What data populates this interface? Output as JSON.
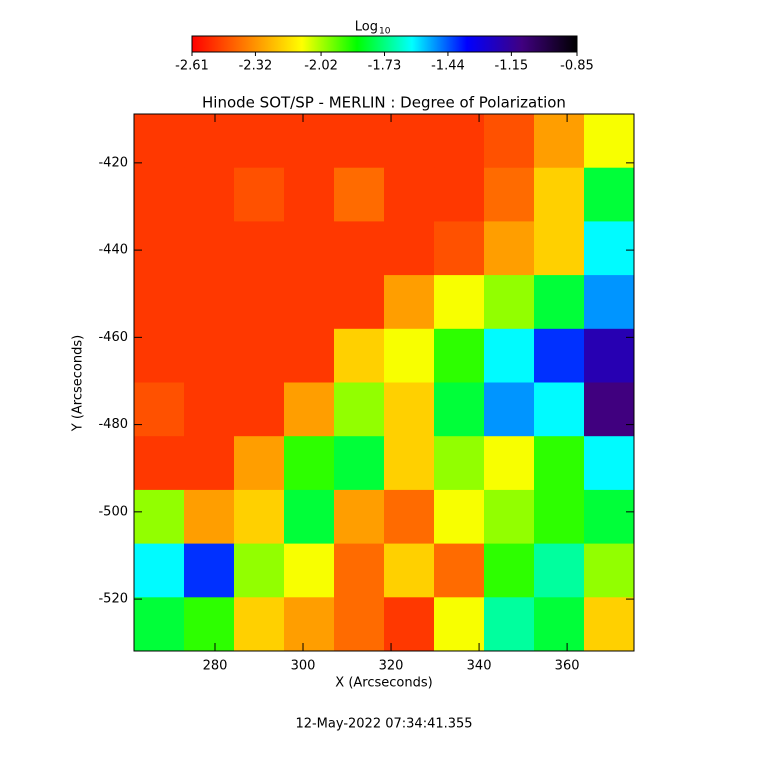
{
  "chart_data": {
    "type": "heatmap",
    "title": "Hinode SOT/SP - MERLIN : Degree of Polarization",
    "xlabel": "X (Arcseconds)",
    "ylabel": "Y (Arcseconds)",
    "colorbar_label": "Log",
    "colorbar_label_sub": "10",
    "timestamp": "12-May-2022 07:34:41.355",
    "xlim": [
      261.6,
      375.2
    ],
    "ylim": [
      -531.9,
      -408.8
    ],
    "xticks": [
      280,
      300,
      320,
      340,
      360
    ],
    "yticks": [
      -420,
      -440,
      -460,
      -480,
      -500,
      -520
    ],
    "clim": [
      -2.61,
      -0.85
    ],
    "cticks": [
      -2.61,
      -2.32,
      -2.02,
      -1.73,
      -1.44,
      -1.15,
      -0.85
    ],
    "colormap": [
      "#ff0000",
      "#ff8000",
      "#ffff00",
      "#00ff00",
      "#00ffff",
      "#0000ff",
      "#400080",
      "#000000"
    ],
    "z": [
      [
        -2.5,
        -2.5,
        -2.5,
        -2.5,
        -2.5,
        -2.5,
        -2.5,
        -2.45,
        -2.3,
        -2.1
      ],
      [
        -2.5,
        -2.5,
        -2.45,
        -2.5,
        -2.4,
        -2.5,
        -2.5,
        -2.4,
        -2.2,
        -1.8
      ],
      [
        -2.5,
        -2.5,
        -2.5,
        -2.5,
        -2.5,
        -2.5,
        -2.45,
        -2.3,
        -2.2,
        -1.6
      ],
      [
        -2.5,
        -2.5,
        -2.5,
        -2.5,
        -2.5,
        -2.3,
        -2.1,
        -2.0,
        -1.8,
        -1.5
      ],
      [
        -2.5,
        -2.5,
        -2.5,
        -2.5,
        -2.2,
        -2.1,
        -1.9,
        -1.6,
        -1.4,
        -1.2
      ],
      [
        -2.45,
        -2.5,
        -2.5,
        -2.3,
        -2.0,
        -2.2,
        -1.8,
        -1.5,
        -1.6,
        -1.1
      ],
      [
        -2.5,
        -2.5,
        -2.3,
        -1.9,
        -1.8,
        -2.2,
        -2.0,
        -2.1,
        -1.9,
        -1.6
      ],
      [
        -2.0,
        -2.3,
        -2.2,
        -1.8,
        -2.3,
        -2.4,
        -2.1,
        -2.0,
        -1.9,
        -1.8
      ],
      [
        -1.6,
        -1.4,
        -2.0,
        -2.1,
        -2.4,
        -2.2,
        -2.4,
        -1.9,
        -1.7,
        -2.0
      ],
      [
        -1.8,
        -1.9,
        -2.2,
        -2.3,
        -2.4,
        -2.5,
        -2.1,
        -1.7,
        -1.8,
        -2.2
      ]
    ]
  }
}
